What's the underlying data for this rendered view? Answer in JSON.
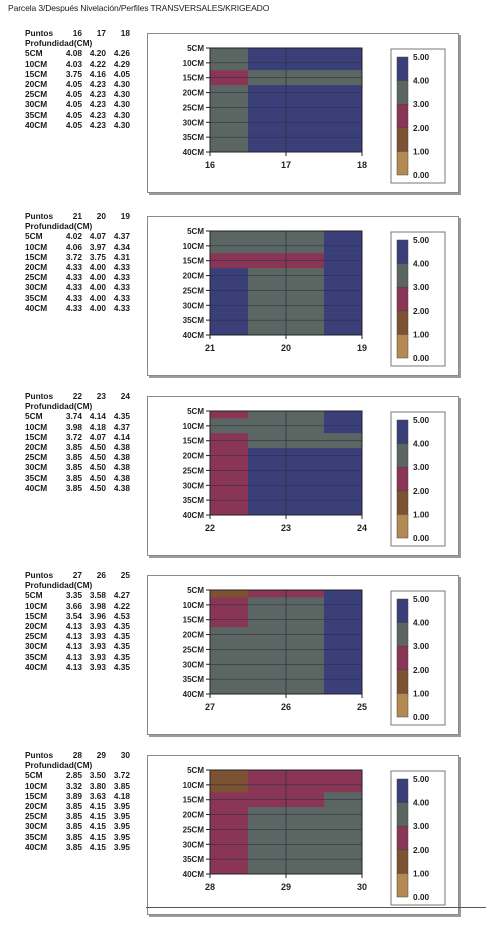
{
  "title": "Parcela 3/Después Nivelación/Perfiles TRANSVERSALES/KRIGEADO",
  "colors": {
    "c0": "#f5c02a",
    "c1": "#b58a52",
    "c2": "#7c5233",
    "c3": "#8a3555",
    "c4": "#5b6663",
    "c5": "#3a3f7a"
  },
  "legend": {
    "ticks": [
      "5.00",
      "4.00",
      "3.00",
      "2.00",
      "1.00",
      "0.00"
    ]
  },
  "table_labels": {
    "puntos": "Puntos",
    "profundidad": "Profundidad(CM)"
  },
  "chart_data": [
    {
      "type": "heatmap",
      "title": "",
      "xlabel": "Puntos",
      "ylabel": "Profundidad(CM)",
      "x": [
        "16",
        "17",
        "18"
      ],
      "depths": [
        "5CM",
        "10CM",
        "15CM",
        "20CM",
        "25CM",
        "30CM",
        "35CM",
        "40CM"
      ],
      "values": [
        [
          4.08,
          4.2,
          4.26
        ],
        [
          4.03,
          4.22,
          4.29
        ],
        [
          3.75,
          4.16,
          4.05
        ],
        [
          4.05,
          4.23,
          4.3
        ],
        [
          4.05,
          4.23,
          4.3
        ],
        [
          4.05,
          4.23,
          4.3
        ],
        [
          4.05,
          4.23,
          4.3
        ],
        [
          4.05,
          4.23,
          4.3
        ]
      ],
      "color_scale": [
        0,
        5
      ]
    },
    {
      "type": "heatmap",
      "title": "",
      "xlabel": "Puntos",
      "ylabel": "Profundidad(CM)",
      "x": [
        "21",
        "20",
        "19"
      ],
      "depths": [
        "5CM",
        "10CM",
        "15CM",
        "20CM",
        "25CM",
        "30CM",
        "35CM",
        "40CM"
      ],
      "values": [
        [
          4.02,
          4.07,
          4.37
        ],
        [
          4.06,
          3.97,
          4.34
        ],
        [
          3.72,
          3.75,
          4.31
        ],
        [
          4.33,
          4.0,
          4.33
        ],
        [
          4.33,
          4.0,
          4.33
        ],
        [
          4.33,
          4.0,
          4.33
        ],
        [
          4.33,
          4.0,
          4.33
        ],
        [
          4.33,
          4.0,
          4.33
        ]
      ],
      "color_scale": [
        0,
        5
      ]
    },
    {
      "type": "heatmap",
      "title": "",
      "xlabel": "Puntos",
      "ylabel": "Profundidad(CM)",
      "x": [
        "22",
        "23",
        "24"
      ],
      "depths": [
        "5CM",
        "10CM",
        "15CM",
        "20CM",
        "25CM",
        "30CM",
        "35CM",
        "40CM"
      ],
      "values": [
        [
          3.74,
          4.14,
          4.35
        ],
        [
          3.98,
          4.18,
          4.37
        ],
        [
          3.72,
          4.07,
          4.14
        ],
        [
          3.85,
          4.5,
          4.38
        ],
        [
          3.85,
          4.5,
          4.38
        ],
        [
          3.85,
          4.5,
          4.38
        ],
        [
          3.85,
          4.5,
          4.38
        ],
        [
          3.85,
          4.5,
          4.38
        ]
      ],
      "color_scale": [
        0,
        5
      ]
    },
    {
      "type": "heatmap",
      "title": "",
      "xlabel": "Puntos",
      "ylabel": "Profundidad(CM)",
      "x": [
        "27",
        "26",
        "25"
      ],
      "depths": [
        "5CM",
        "10CM",
        "15CM",
        "20CM",
        "25CM",
        "30CM",
        "35CM",
        "40CM"
      ],
      "values": [
        [
          3.35,
          3.58,
          4.27
        ],
        [
          3.66,
          3.98,
          4.22
        ],
        [
          3.54,
          3.96,
          4.53
        ],
        [
          4.13,
          3.93,
          4.35
        ],
        [
          4.13,
          3.93,
          4.35
        ],
        [
          4.13,
          3.93,
          4.35
        ],
        [
          4.13,
          3.93,
          4.35
        ],
        [
          4.13,
          3.93,
          4.35
        ]
      ],
      "color_scale": [
        0,
        5
      ]
    },
    {
      "type": "heatmap",
      "title": "",
      "xlabel": "Puntos",
      "ylabel": "Profundidad(CM)",
      "x": [
        "28",
        "29",
        "30"
      ],
      "depths": [
        "5CM",
        "10CM",
        "15CM",
        "20CM",
        "25CM",
        "30CM",
        "35CM",
        "40CM"
      ],
      "values": [
        [
          2.85,
          3.5,
          3.72
        ],
        [
          3.32,
          3.8,
          3.85
        ],
        [
          3.89,
          3.63,
          4.18
        ],
        [
          3.85,
          4.15,
          3.95
        ],
        [
          3.85,
          4.15,
          3.95
        ],
        [
          3.85,
          4.15,
          3.95
        ],
        [
          3.85,
          4.15,
          3.95
        ],
        [
          3.85,
          4.15,
          3.95
        ]
      ],
      "color_scale": [
        0,
        5
      ]
    }
  ]
}
